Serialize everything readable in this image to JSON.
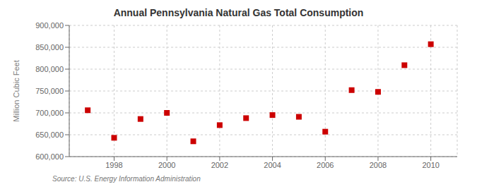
{
  "chart_data": {
    "type": "scatter",
    "title": "Annual Pennsylvania Natural Gas Total Consumption",
    "y_label": "Million Cubic Feet",
    "annotations": [
      "Source: U.S. Energy Information Administration"
    ],
    "x": [
      1997,
      1998,
      1999,
      2000,
      2001,
      2002,
      2003,
      2004,
      2005,
      2006,
      2007,
      2008,
      2009,
      2010
    ],
    "values": [
      706000,
      643000,
      686000,
      700000,
      635000,
      672000,
      688000,
      695000,
      691000,
      657000,
      752000,
      748000,
      809000,
      857000
    ],
    "color": "#cc0000",
    "marker": "square",
    "grid": true,
    "xlim": [
      1996.3,
      2011.0
    ],
    "xticks": [
      1998,
      2000,
      2002,
      2004,
      2006,
      2008,
      2010
    ],
    "ylim": [
      600000,
      900000
    ],
    "yticks": [
      {
        "value": 600000,
        "label": "600,000"
      },
      {
        "value": 650000,
        "label": "650,000"
      },
      {
        "value": 700000,
        "label": "700,000"
      },
      {
        "value": 750000,
        "label": "750,000"
      },
      {
        "value": 800000,
        "label": "800,000"
      },
      {
        "value": 850000,
        "label": "850,000"
      },
      {
        "value": 900000,
        "label": "900,000"
      }
    ]
  }
}
